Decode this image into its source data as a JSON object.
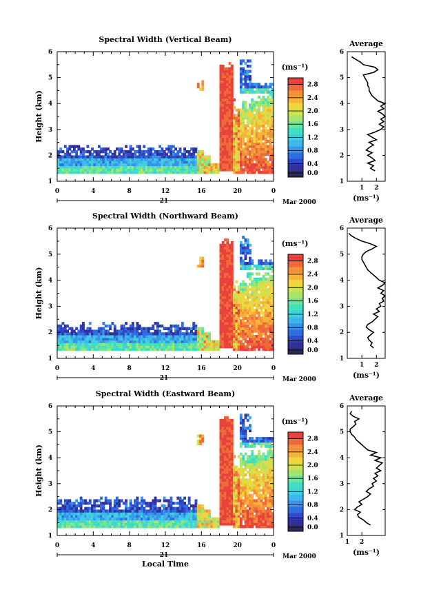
{
  "chart_data": [
    {
      "type": "heatmap",
      "title": "Spectral Width (Vertical Beam)",
      "ylabel": "Height (km)",
      "ylim": [
        1,
        6
      ],
      "yticks": [
        "1",
        "2",
        "3",
        "4",
        "5",
        "6"
      ],
      "xticks": [
        "0",
        "4",
        "8",
        "12",
        "16",
        "20",
        "0"
      ],
      "xrange_hours": [
        0,
        24
      ],
      "day_label": "21",
      "date_label": "Mar 2000",
      "colorbar_unit": "(ms⁻¹)",
      "colorbar_ticks": [
        "0.0",
        "0.4",
        "0.8",
        "1.2",
        "1.6",
        "2.0",
        "2.4",
        "2.8"
      ],
      "colorbar_range": [
        0,
        3.0
      ],
      "profile": {
        "title": "Average",
        "xlabel": "(ms⁻¹)",
        "xticks": [
          "1",
          "2"
        ],
        "xlim": [
          0,
          2.6
        ],
        "ylim": [
          1,
          6
        ],
        "yticks": [
          "1",
          "2",
          "3",
          "4",
          "5",
          "6"
        ],
        "height_km": [
          1.4,
          1.5,
          1.6,
          1.7,
          1.8,
          1.9,
          2.0,
          2.1,
          2.2,
          2.3,
          2.4,
          2.5,
          2.6,
          2.7,
          2.8,
          2.9,
          3.0,
          3.1,
          3.2,
          3.3,
          3.4,
          3.5,
          3.6,
          3.7,
          3.8,
          3.9,
          4.0,
          4.1,
          4.2,
          4.3,
          4.4,
          4.5,
          4.6,
          4.7,
          4.8,
          4.9,
          5.0,
          5.1,
          5.2,
          5.3,
          5.4,
          5.5,
          5.6,
          5.7,
          5.8
        ],
        "width_ms": [
          1.9,
          1.6,
          1.8,
          1.4,
          1.9,
          1.7,
          1.4,
          1.7,
          1.3,
          1.5,
          1.8,
          1.5,
          2.0,
          1.7,
          1.4,
          1.9,
          2.3,
          2.5,
          2.2,
          2.5,
          2.3,
          2.6,
          2.4,
          2.1,
          2.5,
          2.3,
          2.6,
          2.1,
          1.9,
          1.7,
          1.6,
          1.5,
          1.5,
          1.4,
          1.4,
          1.3,
          1.2,
          1.1,
          1.8,
          2.1,
          1.9,
          1.1,
          0.9,
          0.6,
          0.3
        ]
      }
    },
    {
      "type": "heatmap",
      "title": "Spectral Width (Northward Beam)",
      "ylabel": "Height (km)",
      "ylim": [
        1,
        6
      ],
      "yticks": [
        "1",
        "2",
        "3",
        "4",
        "5",
        "6"
      ],
      "xticks": [
        "0",
        "4",
        "8",
        "12",
        "16",
        "20",
        "0"
      ],
      "xrange_hours": [
        0,
        24
      ],
      "day_label": "21",
      "date_label": "Mar 2000",
      "colorbar_unit": "(ms⁻¹)",
      "colorbar_ticks": [
        "0.0",
        "0.4",
        "0.8",
        "1.2",
        "1.6",
        "2.0",
        "2.4",
        "2.8"
      ],
      "colorbar_range": [
        0,
        3.0
      ],
      "profile": {
        "title": "Average",
        "xlabel": "(ms⁻¹)",
        "xticks": [
          "1",
          "2"
        ],
        "xlim": [
          0,
          2.6
        ],
        "ylim": [
          1,
          6
        ],
        "yticks": [
          "1",
          "2",
          "3",
          "4",
          "5",
          "6"
        ],
        "height_km": [
          1.4,
          1.5,
          1.6,
          1.7,
          1.8,
          1.9,
          2.0,
          2.1,
          2.2,
          2.3,
          2.4,
          2.5,
          2.6,
          2.7,
          2.8,
          2.9,
          3.0,
          3.1,
          3.2,
          3.3,
          3.4,
          3.5,
          3.6,
          3.7,
          3.8,
          3.9,
          4.0,
          4.1,
          4.2,
          4.3,
          4.4,
          4.5,
          4.6,
          4.7,
          4.8,
          4.9,
          5.0,
          5.1,
          5.2,
          5.3,
          5.4,
          5.5,
          5.6,
          5.7,
          5.8
        ],
        "width_ms": [
          1.8,
          1.6,
          1.7,
          1.5,
          1.4,
          1.6,
          1.8,
          1.5,
          1.3,
          1.4,
          1.7,
          1.9,
          2.1,
          1.8,
          2.2,
          2.0,
          2.3,
          2.2,
          2.5,
          2.4,
          2.6,
          2.3,
          2.5,
          2.1,
          2.4,
          2.6,
          2.2,
          2.0,
          1.8,
          1.6,
          1.4,
          1.3,
          1.2,
          1.1,
          1.0,
          1.0,
          1.1,
          1.3,
          1.7,
          2.0,
          1.6,
          1.0,
          0.6,
          0.3,
          0.1
        ]
      }
    },
    {
      "type": "heatmap",
      "title": "Spectral Width (Eastward Beam)",
      "ylabel": "Height (km)",
      "xlabel": "Local Time",
      "ylim": [
        1,
        6
      ],
      "yticks": [
        "1",
        "2",
        "3",
        "4",
        "5",
        "6"
      ],
      "xticks": [
        "0",
        "4",
        "8",
        "12",
        "16",
        "20",
        "0"
      ],
      "xrange_hours": [
        0,
        24
      ],
      "day_label": "21",
      "date_label": "Mar 2000",
      "colorbar_unit": "(ms⁻¹)",
      "colorbar_ticks": [
        "0.0",
        "0.4",
        "0.8",
        "1.2",
        "1.6",
        "2.0",
        "2.4",
        "2.8"
      ],
      "colorbar_range": [
        0,
        3.0
      ],
      "profile": {
        "title": "Average",
        "xlabel": "(ms⁻¹)",
        "xticks": [
          "1",
          "2"
        ],
        "xlim": [
          1,
          3.6
        ],
        "ylim": [
          1,
          6
        ],
        "yticks": [
          "1",
          "2",
          "3",
          "4",
          "5",
          "6"
        ],
        "height_km": [
          1.4,
          1.5,
          1.6,
          1.7,
          1.8,
          1.9,
          2.0,
          2.1,
          2.2,
          2.3,
          2.4,
          2.5,
          2.6,
          2.7,
          2.8,
          2.9,
          3.0,
          3.1,
          3.2,
          3.3,
          3.4,
          3.5,
          3.6,
          3.7,
          3.8,
          3.9,
          4.0,
          4.1,
          4.2,
          4.3,
          4.4,
          4.5,
          4.6,
          4.7,
          4.8,
          4.9,
          5.0,
          5.1,
          5.2,
          5.3,
          5.4,
          5.5,
          5.6,
          5.7,
          5.8
        ],
        "width_ms": [
          2.6,
          2.3,
          2.1,
          1.8,
          1.7,
          1.9,
          1.5,
          1.7,
          2.0,
          1.8,
          2.1,
          2.4,
          2.6,
          2.3,
          2.5,
          2.8,
          2.7,
          3.0,
          2.8,
          3.1,
          2.9,
          3.3,
          3.0,
          3.2,
          3.4,
          2.9,
          3.3,
          2.6,
          3.0,
          2.4,
          2.2,
          2.0,
          1.8,
          1.6,
          1.5,
          1.3,
          1.2,
          1.2,
          1.4,
          1.6,
          1.5,
          1.8,
          1.4,
          1.2,
          1.3
        ]
      }
    }
  ],
  "colormap": [
    "#2a2a5a",
    "#34309a",
    "#2f49c9",
    "#2f6ee0",
    "#3a95ea",
    "#3fb6ec",
    "#3fd1de",
    "#3ee0c0",
    "#6ae69a",
    "#a6e46b",
    "#d2e050",
    "#f0d63c",
    "#f6b33a",
    "#f3903a",
    "#ef6a3a",
    "#e9423a"
  ]
}
